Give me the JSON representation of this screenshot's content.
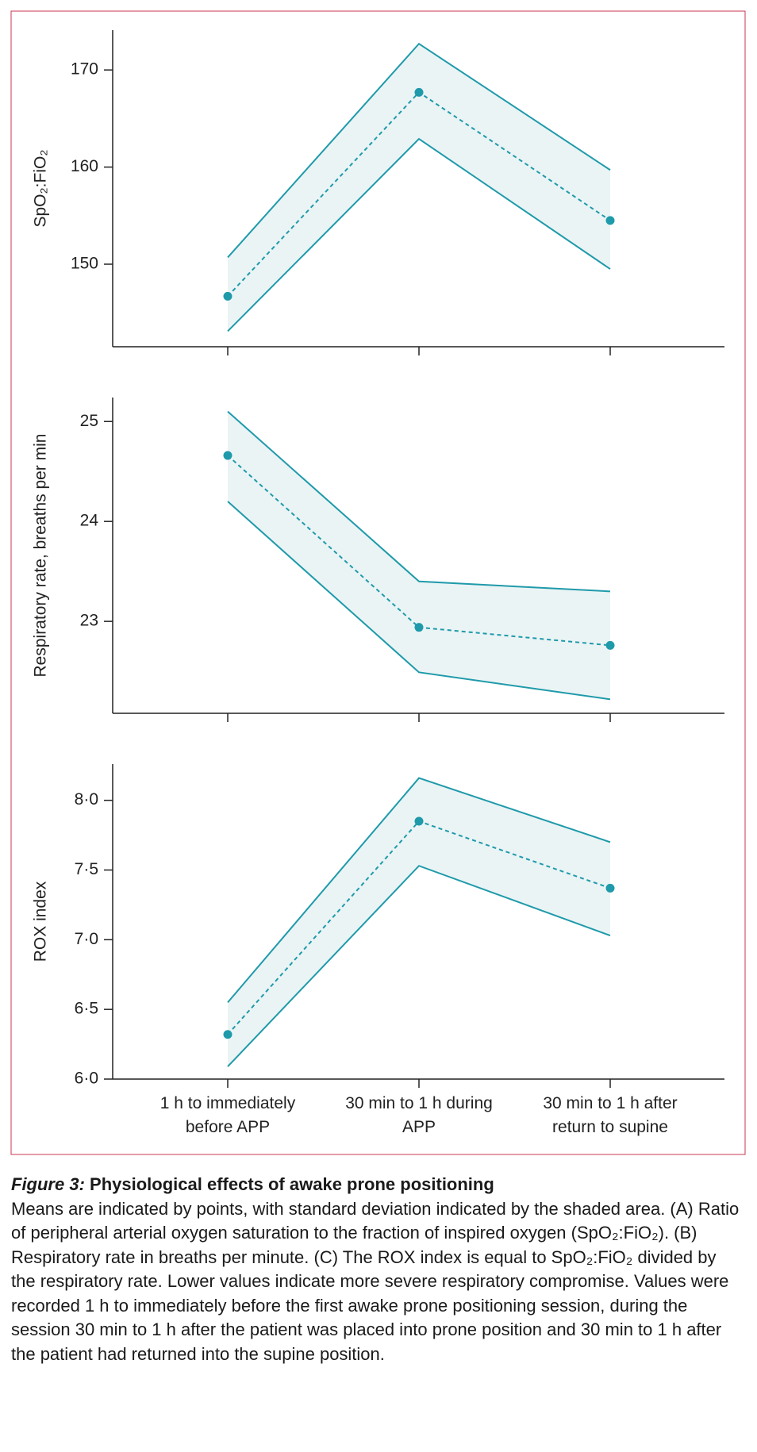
{
  "chart_data": [
    {
      "type": "line",
      "ylabel": "SpO₂:FiO₂",
      "color": "#1f9aaa",
      "band_color": "#eaf4f5",
      "values": [
        146.7,
        167.7,
        154.5
      ],
      "upper": [
        150.7,
        172.7,
        159.7
      ],
      "lower": [
        143.1,
        162.9,
        149.5
      ],
      "ylim": [
        141.5,
        174.1
      ],
      "yticks": [
        150,
        160,
        170
      ]
    },
    {
      "type": "line",
      "ylabel": "Respiratory rate, breaths per min",
      "color": "#1f9aaa",
      "band_color": "#eaf4f5",
      "values": [
        24.66,
        22.94,
        22.76
      ],
      "upper": [
        25.1,
        23.4,
        23.3
      ],
      "lower": [
        24.2,
        22.49,
        22.22
      ],
      "ylim": [
        22.08,
        25.24
      ],
      "yticks": [
        23,
        24,
        25
      ]
    },
    {
      "type": "line",
      "ylabel": "ROX index",
      "color": "#1f9aaa",
      "band_color": "#eaf4f5",
      "categories": [
        "1 h to immediately before APP",
        "30 min to 1 h during APP",
        "30 min to 1 h after return to supine"
      ],
      "values": [
        6.32,
        7.85,
        7.37
      ],
      "upper": [
        6.55,
        8.16,
        7.7
      ],
      "lower": [
        6.09,
        7.53,
        7.03
      ],
      "ylim": [
        6.0,
        8.26
      ],
      "yticks": [
        {
          "value": 6.0,
          "label": "6·0"
        },
        {
          "value": 6.5,
          "label": "6·5"
        },
        {
          "value": 7.0,
          "label": "7·0"
        },
        {
          "value": 7.5,
          "label": "7·5"
        },
        {
          "value": 8.0,
          "label": "8·0"
        }
      ]
    }
  ],
  "caption": {
    "label": "Figure 3:",
    "title": "Physiological effects of awake prone positioning",
    "text": "Means are indicated by points, with standard deviation indicated by the shaded area. (A) Ratio of peripheral arterial oxygen saturation to the fraction of inspired oxygen (SpO₂:FiO₂). (B) Respiratory rate in breaths per minute. (C) The ROX index is equal to SpO₂:FiO₂ divided by the respiratory rate. Lower values indicate more severe respiratory compromise. Values were recorded 1 h to immediately before the first awake prone positioning session, during the session 30 min to 1 h after the patient was placed into prone position and 30 min to 1 h after the patient had returned into the supine position."
  }
}
